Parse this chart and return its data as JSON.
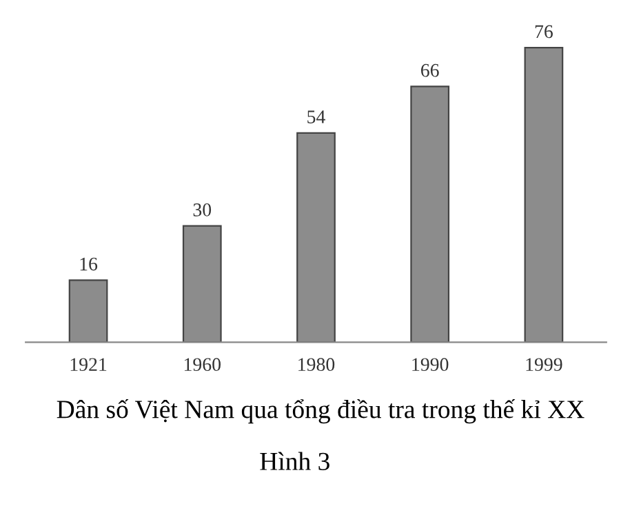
{
  "chart_data": {
    "type": "bar",
    "title": "Dân số Việt Nam qua tổng điều tra trong thế kỉ XX",
    "annotations": [
      "Hình 3"
    ],
    "categories": [
      "1921",
      "1960",
      "1980",
      "1990",
      "1999"
    ],
    "values": [
      16,
      30,
      54,
      66,
      76
    ],
    "color": "#8c8c8c",
    "data_labels": true,
    "grid": false,
    "legend": false
  }
}
